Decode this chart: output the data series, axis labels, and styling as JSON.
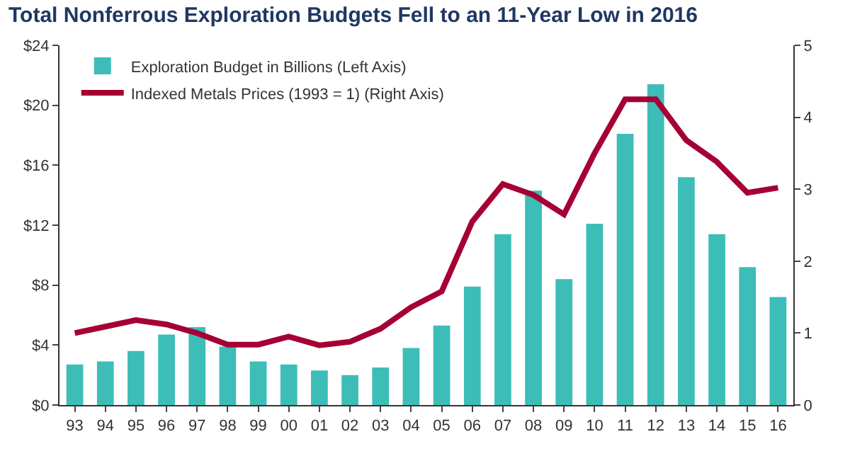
{
  "chart_data": {
    "type": "bar",
    "title": "Total Nonferrous Exploration Budgets Fell to an 11-Year Low in 2016",
    "categories": [
      "93",
      "94",
      "95",
      "96",
      "97",
      "98",
      "99",
      "00",
      "01",
      "02",
      "03",
      "04",
      "05",
      "06",
      "07",
      "08",
      "09",
      "10",
      "11",
      "12",
      "13",
      "14",
      "15",
      "16"
    ],
    "series": [
      {
        "name": "Exploration Budget in Billions (Left Axis)",
        "color": "#3dbdb8",
        "values": [
          2.7,
          2.9,
          3.6,
          4.7,
          5.2,
          3.9,
          2.9,
          2.7,
          2.3,
          2.0,
          2.5,
          3.8,
          5.3,
          7.9,
          11.4,
          14.3,
          8.4,
          12.1,
          18.1,
          21.4,
          15.2,
          11.4,
          9.2,
          7.2
        ]
      },
      {
        "name": "Indexed Metals Prices (1993 = 1) (Right Axis)",
        "type": "line",
        "axis": "y2",
        "color": "#a50034",
        "values": [
          1.0,
          1.09,
          1.18,
          1.12,
          1.0,
          0.84,
          0.84,
          0.95,
          0.83,
          0.88,
          1.06,
          1.36,
          1.58,
          2.55,
          3.07,
          2.92,
          2.65,
          3.5,
          4.25,
          4.25,
          3.68,
          3.38,
          2.95,
          3.02
        ]
      }
    ],
    "ylim": [
      0,
      24
    ],
    "yticks": [
      {
        "value": 0,
        "label": "$0"
      },
      {
        "value": 4,
        "label": "$4"
      },
      {
        "value": 8,
        "label": "$8"
      },
      {
        "value": 12,
        "label": "$12"
      },
      {
        "value": 16,
        "label": "$16"
      },
      {
        "value": 20,
        "label": "$20"
      },
      {
        "value": 24,
        "label": "$24"
      }
    ],
    "y2lim": [
      0,
      5
    ],
    "y2ticks": [
      0,
      1,
      2,
      3,
      4,
      5
    ],
    "legend": "top left",
    "marker": "none",
    "line_style": "solid"
  }
}
